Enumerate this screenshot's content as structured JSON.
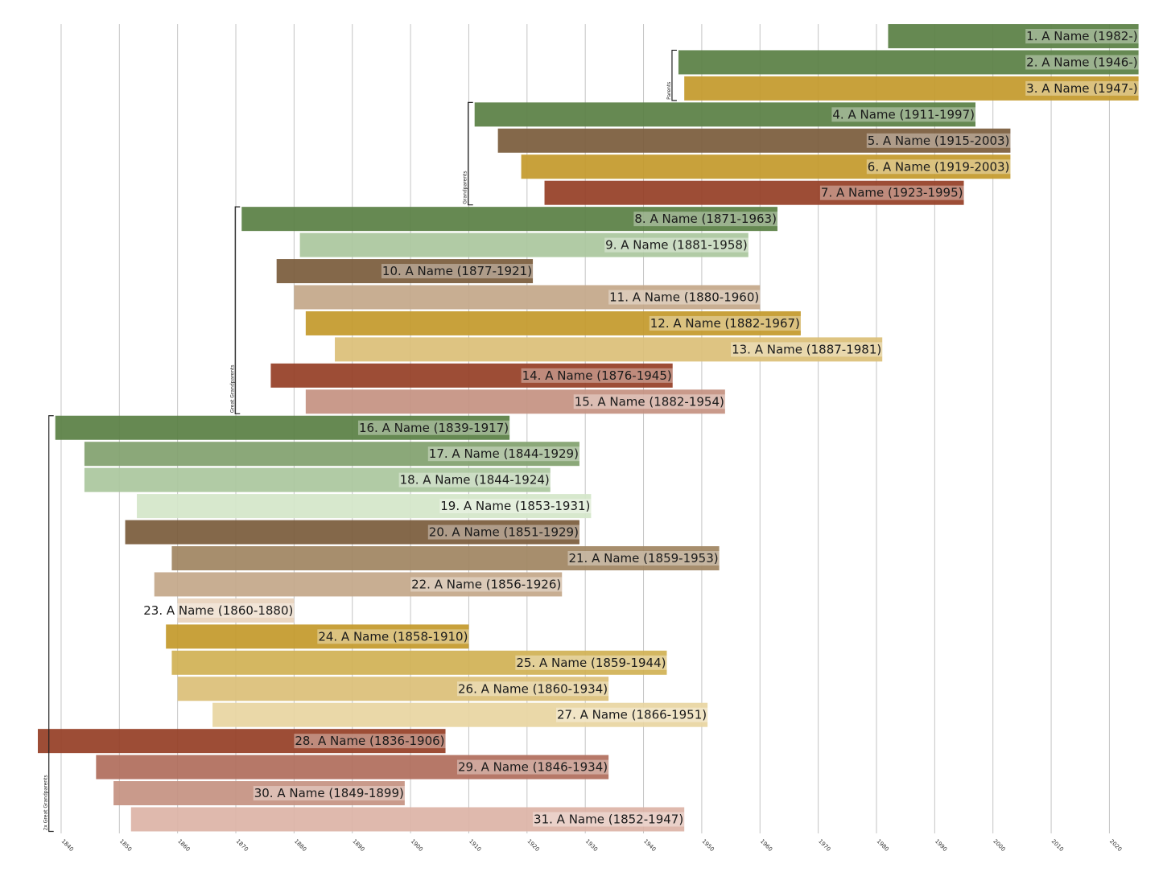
{
  "chart_data": {
    "type": "bar",
    "orientation": "horizontal-timeline",
    "xlim": [
      1836,
      2025
    ],
    "x_ticks": [
      1840,
      1850,
      1860,
      1870,
      1880,
      1890,
      1900,
      1910,
      1920,
      1930,
      1940,
      1950,
      1960,
      1970,
      1980,
      1990,
      2000,
      2010,
      2020
    ],
    "grid": "vertical",
    "legend": "none",
    "people": [
      {
        "label": "1. A Name (1982-)",
        "start": 1982,
        "end": 2025,
        "color": "#5a8045"
      },
      {
        "label": "2. A Name (1946-)",
        "start": 1946,
        "end": 2025,
        "color": "#5a8045"
      },
      {
        "label": "3. A Name (1947-)",
        "start": 1947,
        "end": 2025,
        "color": "#c49a2c"
      },
      {
        "label": "4. A Name (1911-1997)",
        "start": 1911,
        "end": 1997,
        "color": "#5a8045"
      },
      {
        "label": "5. A Name (1915-2003)",
        "start": 1915,
        "end": 2003,
        "color": "#7b5c3c"
      },
      {
        "label": "6. A Name (1919-2003)",
        "start": 1919,
        "end": 2003,
        "color": "#c49a2c"
      },
      {
        "label": "7. A Name (1923-1995)",
        "start": 1923,
        "end": 1995,
        "color": "#963f27"
      },
      {
        "label": "8. A Name (1871-1963)",
        "start": 1871,
        "end": 1963,
        "color": "#5a8045"
      },
      {
        "label": "9. A Name (1881-1958)",
        "start": 1881,
        "end": 1958,
        "color": "#abc79e"
      },
      {
        "label": "10. A Name (1877-1921)",
        "start": 1877,
        "end": 1921,
        "color": "#7b5c3c"
      },
      {
        "label": "11. A Name (1880-1960)",
        "start": 1880,
        "end": 1960,
        "color": "#c4a88a"
      },
      {
        "label": "12. A Name (1882-1967)",
        "start": 1882,
        "end": 1967,
        "color": "#c49a2c"
      },
      {
        "label": "13. A Name (1887-1981)",
        "start": 1887,
        "end": 1981,
        "color": "#dcc079"
      },
      {
        "label": "14. A Name (1876-1945)",
        "start": 1876,
        "end": 1945,
        "color": "#963f27"
      },
      {
        "label": "15. A Name (1882-1954)",
        "start": 1882,
        "end": 1954,
        "color": "#c59282"
      },
      {
        "label": "16. A Name (1839-1917)",
        "start": 1839,
        "end": 1917,
        "color": "#5a8045"
      },
      {
        "label": "17. A Name (1844-1929)",
        "start": 1844,
        "end": 1929,
        "color": "#82a16f"
      },
      {
        "label": "18. A Name (1844-1924)",
        "start": 1844,
        "end": 1924,
        "color": "#abc79e"
      },
      {
        "label": "19. A Name (1853-1931)",
        "start": 1853,
        "end": 1931,
        "color": "#d4e6c9"
      },
      {
        "label": "20. A Name (1851-1929)",
        "start": 1851,
        "end": 1929,
        "color": "#7b5c3c"
      },
      {
        "label": "21. A Name (1859-1953)",
        "start": 1859,
        "end": 1953,
        "color": "#a08562"
      },
      {
        "label": "22. A Name (1856-1926)",
        "start": 1856,
        "end": 1926,
        "color": "#c4a88a"
      },
      {
        "label": "23. A Name (1860-1880)",
        "start": 1860,
        "end": 1880,
        "color": "#e8d3bc"
      },
      {
        "label": "24. A Name (1858-1910)",
        "start": 1858,
        "end": 1910,
        "color": "#c49a2c"
      },
      {
        "label": "25. A Name (1859-1944)",
        "start": 1859,
        "end": 1944,
        "color": "#d1b255"
      },
      {
        "label": "26. A Name (1860-1934)",
        "start": 1860,
        "end": 1934,
        "color": "#dcc079"
      },
      {
        "label": "27. A Name (1866-1951)",
        "start": 1866,
        "end": 1951,
        "color": "#e8d5a1"
      },
      {
        "label": "28. A Name (1836-1906)",
        "start": 1836,
        "end": 1906,
        "color": "#963f27"
      },
      {
        "label": "29. A Name (1846-1934)",
        "start": 1846,
        "end": 1934,
        "color": "#b06e5c"
      },
      {
        "label": "30. A Name (1849-1899)",
        "start": 1849,
        "end": 1899,
        "color": "#c59282"
      },
      {
        "label": "31. A Name (1852-1947)",
        "start": 1852,
        "end": 1947,
        "color": "#ddb4a7"
      }
    ],
    "groups": [
      {
        "label": "Parents",
        "from": 2,
        "to": 3
      },
      {
        "label": "Grandparents",
        "from": 4,
        "to": 7
      },
      {
        "label": "Great Grandparents",
        "from": 8,
        "to": 15
      },
      {
        "label": "2x Great Grandparents",
        "from": 16,
        "to": 31
      }
    ]
  }
}
